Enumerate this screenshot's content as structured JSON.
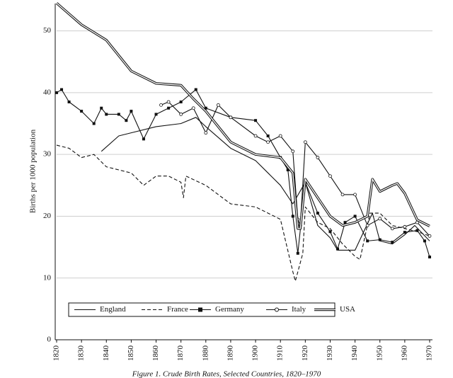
{
  "chart_data": {
    "type": "line",
    "title": "Figure 1. Crude Birth Rates, Selected Countries, 1820–1970",
    "y_label": "Births per 1000 population",
    "xlim": [
      1820,
      1970
    ],
    "ylim": [
      0,
      55
    ],
    "xticks": [
      1820,
      1830,
      1840,
      1850,
      1860,
      1870,
      1880,
      1890,
      1900,
      1910,
      1920,
      1930,
      1940,
      1950,
      1960,
      1970
    ],
    "yticks": [
      0,
      10,
      20,
      30,
      40,
      50
    ],
    "grid": true,
    "legend": "bottom-left",
    "series": [
      {
        "name": "England",
        "color": "#111111",
        "style": "solid",
        "marker": "none",
        "x": [
          1838,
          1845,
          1850,
          1860,
          1870,
          1876,
          1880,
          1890,
          1900,
          1910,
          1915,
          1920,
          1925,
          1930,
          1933,
          1940,
          1947,
          1950,
          1955,
          1960,
          1964,
          1970
        ],
        "values": [
          30.5,
          33,
          33.5,
          34.5,
          35,
          36,
          34.5,
          31,
          29,
          25,
          22,
          25.5,
          18.5,
          16.5,
          14.5,
          14.5,
          20.5,
          16,
          15.5,
          17,
          18.5,
          16
        ]
      },
      {
        "name": "France",
        "color": "#111111",
        "style": "dashed",
        "marker": "none",
        "x": [
          1820,
          1825,
          1830,
          1835,
          1840,
          1845,
          1850,
          1855,
          1860,
          1865,
          1870,
          1871,
          1872,
          1880,
          1890,
          1900,
          1910,
          1915,
          1916,
          1919,
          1920,
          1925,
          1930,
          1935,
          1940,
          1942,
          1946,
          1950,
          1955,
          1960,
          1965,
          1970
        ],
        "values": [
          31.5,
          31,
          29.5,
          30,
          28,
          27.5,
          27,
          25,
          26.5,
          26.5,
          25.5,
          23,
          26.5,
          25,
          22,
          21.5,
          19.5,
          11,
          9.5,
          14,
          21.5,
          19,
          18,
          15.5,
          13.5,
          13,
          20.5,
          20.5,
          18.5,
          18,
          17.5,
          16.8
        ]
      },
      {
        "name": "Germany",
        "color": "#111111",
        "style": "solid",
        "marker": "square",
        "x": [
          1820,
          1822,
          1825,
          1830,
          1835,
          1838,
          1840,
          1845,
          1848,
          1850,
          1855,
          1860,
          1865,
          1870,
          1876,
          1880,
          1890,
          1900,
          1905,
          1910,
          1913,
          1915,
          1917,
          1920,
          1925,
          1930,
          1933,
          1936,
          1940,
          1945,
          1950,
          1955,
          1960,
          1965,
          1968,
          1970
        ],
        "values": [
          40,
          40.5,
          38.5,
          37,
          35,
          37.5,
          36.5,
          36.5,
          35.5,
          37,
          32.5,
          36.5,
          37.5,
          38.5,
          40.5,
          37.5,
          36,
          35.5,
          33,
          29.5,
          27.5,
          20,
          14,
          25.5,
          20.5,
          17.5,
          14.7,
          19,
          20,
          16,
          16.2,
          15.8,
          17.4,
          17.7,
          16,
          13.4
        ]
      },
      {
        "name": "Italy",
        "color": "#111111",
        "style": "solid",
        "marker": "circle",
        "x": [
          1862,
          1865,
          1870,
          1875,
          1880,
          1885,
          1890,
          1900,
          1905,
          1910,
          1915,
          1917,
          1918,
          1920,
          1925,
          1930,
          1935,
          1940,
          1945,
          1950,
          1955,
          1960,
          1965,
          1970
        ],
        "values": [
          38,
          38.5,
          36.5,
          37.5,
          33.5,
          38,
          36,
          33,
          32,
          33,
          30.5,
          19.5,
          18.5,
          32,
          29.5,
          26.5,
          23.5,
          23.5,
          18.5,
          19.6,
          18,
          18.3,
          19,
          16.8
        ]
      },
      {
        "name": "USA",
        "color": "#111111",
        "style": "double",
        "marker": "none",
        "x": [
          1820,
          1830,
          1840,
          1850,
          1860,
          1870,
          1875,
          1880,
          1890,
          1900,
          1910,
          1915,
          1917,
          1918,
          1920,
          1925,
          1930,
          1935,
          1940,
          1945,
          1947,
          1950,
          1955,
          1957,
          1960,
          1965,
          1970
        ],
        "values": [
          54.5,
          51,
          48.5,
          43.5,
          41.5,
          41.2,
          39,
          37,
          32,
          30,
          29.5,
          27,
          18,
          18,
          26,
          23,
          20,
          18.5,
          19,
          20,
          26,
          24,
          25,
          25.3,
          23.7,
          19.4,
          18.4
        ]
      }
    ]
  }
}
